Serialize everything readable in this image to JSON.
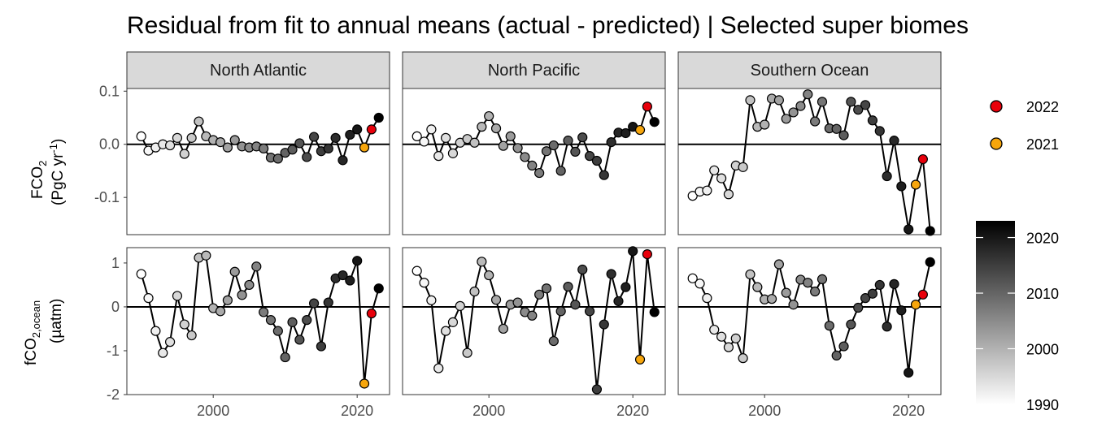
{
  "chart_data": {
    "type": "line",
    "title": "Residual from fit to annual means (actual - predicted) | Selected super biomes",
    "facets": {
      "columns": [
        "North Atlantic",
        "North Pacific",
        "Southern Ocean"
      ],
      "rows": [
        {
          "id": "fco2",
          "label_line1": "FCO",
          "label_sub1": "2",
          "label_line2": "(PgC yr",
          "label_sup2": "-1",
          "label_end2": ")"
        },
        {
          "id": "ocean",
          "label_line1": "fCO",
          "label_sub1": "2,ocean",
          "label_line2": "(µatm)",
          "label_sup2": "",
          "label_end2": ""
        }
      ]
    },
    "x": {
      "range": [
        1988,
        2024.5
      ],
      "ticks": [
        2000,
        2020
      ],
      "tick_labels": [
        "2000",
        "2020"
      ]
    },
    "y_axes": [
      {
        "row": "fco2",
        "range": [
          -0.17,
          0.105
        ],
        "ticks": [
          -0.1,
          0.0,
          0.1
        ],
        "tick_labels": [
          "-0.1",
          "0.0",
          "0.1"
        ]
      },
      {
        "row": "ocean",
        "range": [
          -2.0,
          1.35
        ],
        "ticks": [
          -2,
          -1,
          0,
          1
        ],
        "tick_labels": [
          "-2",
          "-1",
          "0",
          "1"
        ]
      }
    ],
    "years": [
      1990,
      1991,
      1992,
      1993,
      1994,
      1995,
      1996,
      1997,
      1998,
      1999,
      2000,
      2001,
      2002,
      2003,
      2004,
      2005,
      2006,
      2007,
      2008,
      2009,
      2010,
      2011,
      2012,
      2013,
      2014,
      2015,
      2016,
      2017,
      2018,
      2019,
      2020,
      2021,
      2022,
      2023
    ],
    "series": [
      {
        "row": "fco2",
        "col": "North Atlantic",
        "values": [
          0.015,
          -0.012,
          -0.006,
          0.0,
          -0.002,
          0.012,
          -0.018,
          0.012,
          0.043,
          0.015,
          0.008,
          0.004,
          -0.006,
          0.008,
          -0.004,
          -0.006,
          -0.004,
          -0.008,
          -0.025,
          -0.027,
          -0.016,
          -0.01,
          0.002,
          -0.024,
          0.014,
          -0.013,
          -0.008,
          0.012,
          -0.03,
          0.018,
          0.028,
          -0.006,
          0.028,
          0.05
        ]
      },
      {
        "row": "fco2",
        "col": "North Pacific",
        "values": [
          0.015,
          0.005,
          0.028,
          -0.022,
          0.012,
          -0.017,
          0.003,
          0.01,
          0.003,
          0.033,
          0.053,
          0.03,
          -0.003,
          0.015,
          -0.007,
          -0.024,
          -0.04,
          -0.054,
          -0.013,
          -0.002,
          -0.05,
          0.007,
          -0.014,
          0.013,
          -0.022,
          -0.031,
          -0.058,
          0.004,
          0.022,
          0.021,
          0.033,
          0.027,
          0.071,
          0.042
        ]
      },
      {
        "row": "fco2",
        "col": "Southern Ocean",
        "values": [
          -0.097,
          -0.089,
          -0.087,
          -0.049,
          -0.064,
          -0.094,
          -0.04,
          -0.043,
          0.083,
          0.033,
          0.037,
          0.086,
          0.083,
          0.048,
          0.06,
          0.072,
          0.094,
          0.043,
          0.08,
          0.03,
          0.029,
          0.017,
          0.08,
          0.065,
          0.074,
          0.045,
          0.025,
          -0.06,
          0.007,
          -0.079,
          -0.16,
          -0.076,
          -0.028,
          -0.163
        ]
      },
      {
        "row": "ocean",
        "col": "North Atlantic",
        "values": [
          0.75,
          0.2,
          -0.55,
          -1.05,
          -0.8,
          0.25,
          -0.4,
          -0.65,
          1.12,
          1.17,
          -0.03,
          -0.1,
          0.15,
          0.8,
          0.27,
          0.5,
          0.92,
          -0.12,
          -0.3,
          -0.55,
          -1.15,
          -0.35,
          -0.75,
          -0.3,
          0.08,
          -0.9,
          0.1,
          0.65,
          0.72,
          0.6,
          1.05,
          -1.75,
          -0.15,
          0.42
        ]
      },
      {
        "row": "ocean",
        "col": "North Pacific",
        "values": [
          0.82,
          0.55,
          0.15,
          -1.4,
          -0.55,
          -0.35,
          0.02,
          -1.05,
          0.35,
          1.03,
          0.72,
          0.16,
          -0.5,
          0.05,
          0.1,
          -0.12,
          -0.2,
          0.28,
          0.42,
          -0.78,
          -0.1,
          0.46,
          0.05,
          0.85,
          -0.1,
          -1.88,
          -0.4,
          0.75,
          0.13,
          0.45,
          1.27,
          -1.2,
          1.2,
          -0.12
        ]
      },
      {
        "row": "ocean",
        "col": "Southern Ocean",
        "values": [
          0.65,
          0.53,
          0.2,
          -0.52,
          -0.68,
          -0.92,
          -0.72,
          -1.17,
          0.74,
          0.45,
          0.17,
          0.18,
          0.97,
          0.32,
          0.05,
          0.62,
          0.55,
          0.35,
          0.63,
          -0.43,
          -1.11,
          -0.9,
          -0.4,
          -0.02,
          0.2,
          0.3,
          0.5,
          -0.45,
          0.52,
          -0.08,
          -1.5,
          0.05,
          0.28,
          1.02
        ]
      }
    ],
    "highlight": [
      {
        "year": 2022,
        "label": "2022",
        "color": "#e8000b"
      },
      {
        "year": 2021,
        "label": "2021",
        "color": "#f7a60c"
      }
    ],
    "colorbar": {
      "range": [
        1990,
        2023
      ],
      "ticks": [
        1990,
        2000,
        2010,
        2020
      ],
      "tick_labels": [
        "1990",
        "2000",
        "2010",
        "2020"
      ],
      "low_color": "#ffffff",
      "high_color": "#000000"
    },
    "zero_line": true,
    "grid": false,
    "legend": "right"
  }
}
